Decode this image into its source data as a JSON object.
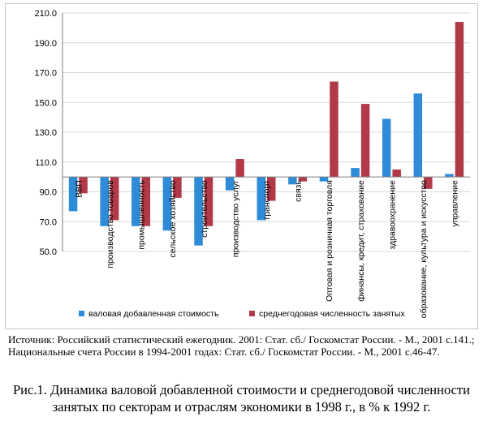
{
  "colors": {
    "series1": "#2e8bd8",
    "series2": "#b23a48",
    "grid": "#d9d9d9",
    "axis": "#7f7f7f"
  },
  "chart_data": {
    "type": "bar",
    "title": "",
    "xlabel": "",
    "ylabel": "",
    "ylim": [
      50,
      210
    ],
    "yticks": [
      "50.0",
      "70.0",
      "90.0",
      "110.0",
      "130.0",
      "150.0",
      "170.0",
      "190.0",
      "210.0"
    ],
    "baseline": 100,
    "grid": true,
    "legend_position": "bottom",
    "categories": [
      "ВВП",
      "производство товаров",
      "промышленность",
      "сельское хозяйство",
      "строительство",
      "производство услуг",
      "транспорт",
      "связь",
      "Оптовая и розничная торговля",
      "финансы, кредит, страхование",
      "здравоохранение",
      "образование, культура и искусство",
      "управление"
    ],
    "series": [
      {
        "name": "валовая добавленная стоимость",
        "values": [
          77,
          67,
          67,
          64,
          54,
          91,
          71,
          95,
          97,
          106,
          139,
          156,
          102
        ]
      },
      {
        "name": "среднегодовая численность занятых",
        "values": [
          89,
          71,
          67,
          86,
          67,
          112,
          84,
          97,
          164,
          149,
          105,
          92,
          204
        ]
      }
    ]
  },
  "source_note": "Источник: Российский статистический ежегодник. 2001: Стат. сб./ Госкомстат России. - М., 2001 с.141.;  Национальные счета России в 1994-2001 годах: Стат. сб./ Госкомстат России. - М., 2001 с.46-47.",
  "caption": "Рис.1. Динамика валовой добавленной стоимости и среднегодовой численности занятых по секторам и отраслям экономики в 1998 г., в % к 1992 г."
}
